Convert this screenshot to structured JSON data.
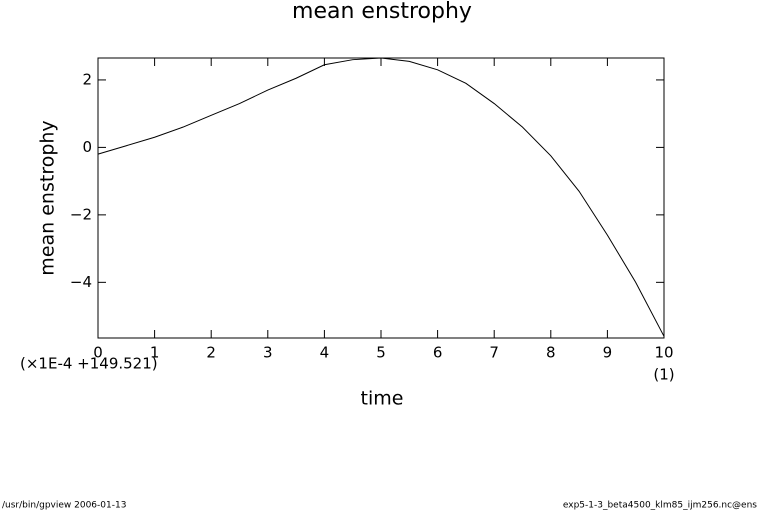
{
  "chart_data": {
    "type": "line",
    "title": "mean enstrophy",
    "xlabel": "time",
    "ylabel": "mean enstrophy",
    "ylabel_note": "(×1E-4 +149.521)",
    "xlabel_note": "(1)",
    "x": [
      0,
      0.5,
      1,
      1.5,
      2,
      2.5,
      3,
      3.5,
      4,
      4.5,
      5,
      5.5,
      6,
      6.5,
      7,
      7.5,
      8,
      8.5,
      9,
      9.5,
      10
    ],
    "series": [
      {
        "name": "mean enstrophy",
        "color": "#000000",
        "values": [
          -0.2,
          0.05,
          0.3,
          0.6,
          0.95,
          1.3,
          1.7,
          2.05,
          2.45,
          2.6,
          2.65,
          2.55,
          2.3,
          1.9,
          1.3,
          0.6,
          -0.25,
          -1.3,
          -2.6,
          -4.0,
          -5.6
        ]
      }
    ],
    "xlim": [
      0,
      10
    ],
    "xticks": [
      0,
      1,
      2,
      3,
      4,
      5,
      6,
      7,
      8,
      9,
      10
    ],
    "ylim": [
      -5.65,
      2.65
    ],
    "yticks": [
      {
        "value": -4,
        "label": "−4"
      },
      {
        "value": -2,
        "label": "−2"
      },
      0,
      2
    ],
    "footer_left": "/usr/bin/gpview  2006-01-13",
    "footer_right": "exp5-1-3_beta4500_klm85_ijm256.nc@ens"
  }
}
